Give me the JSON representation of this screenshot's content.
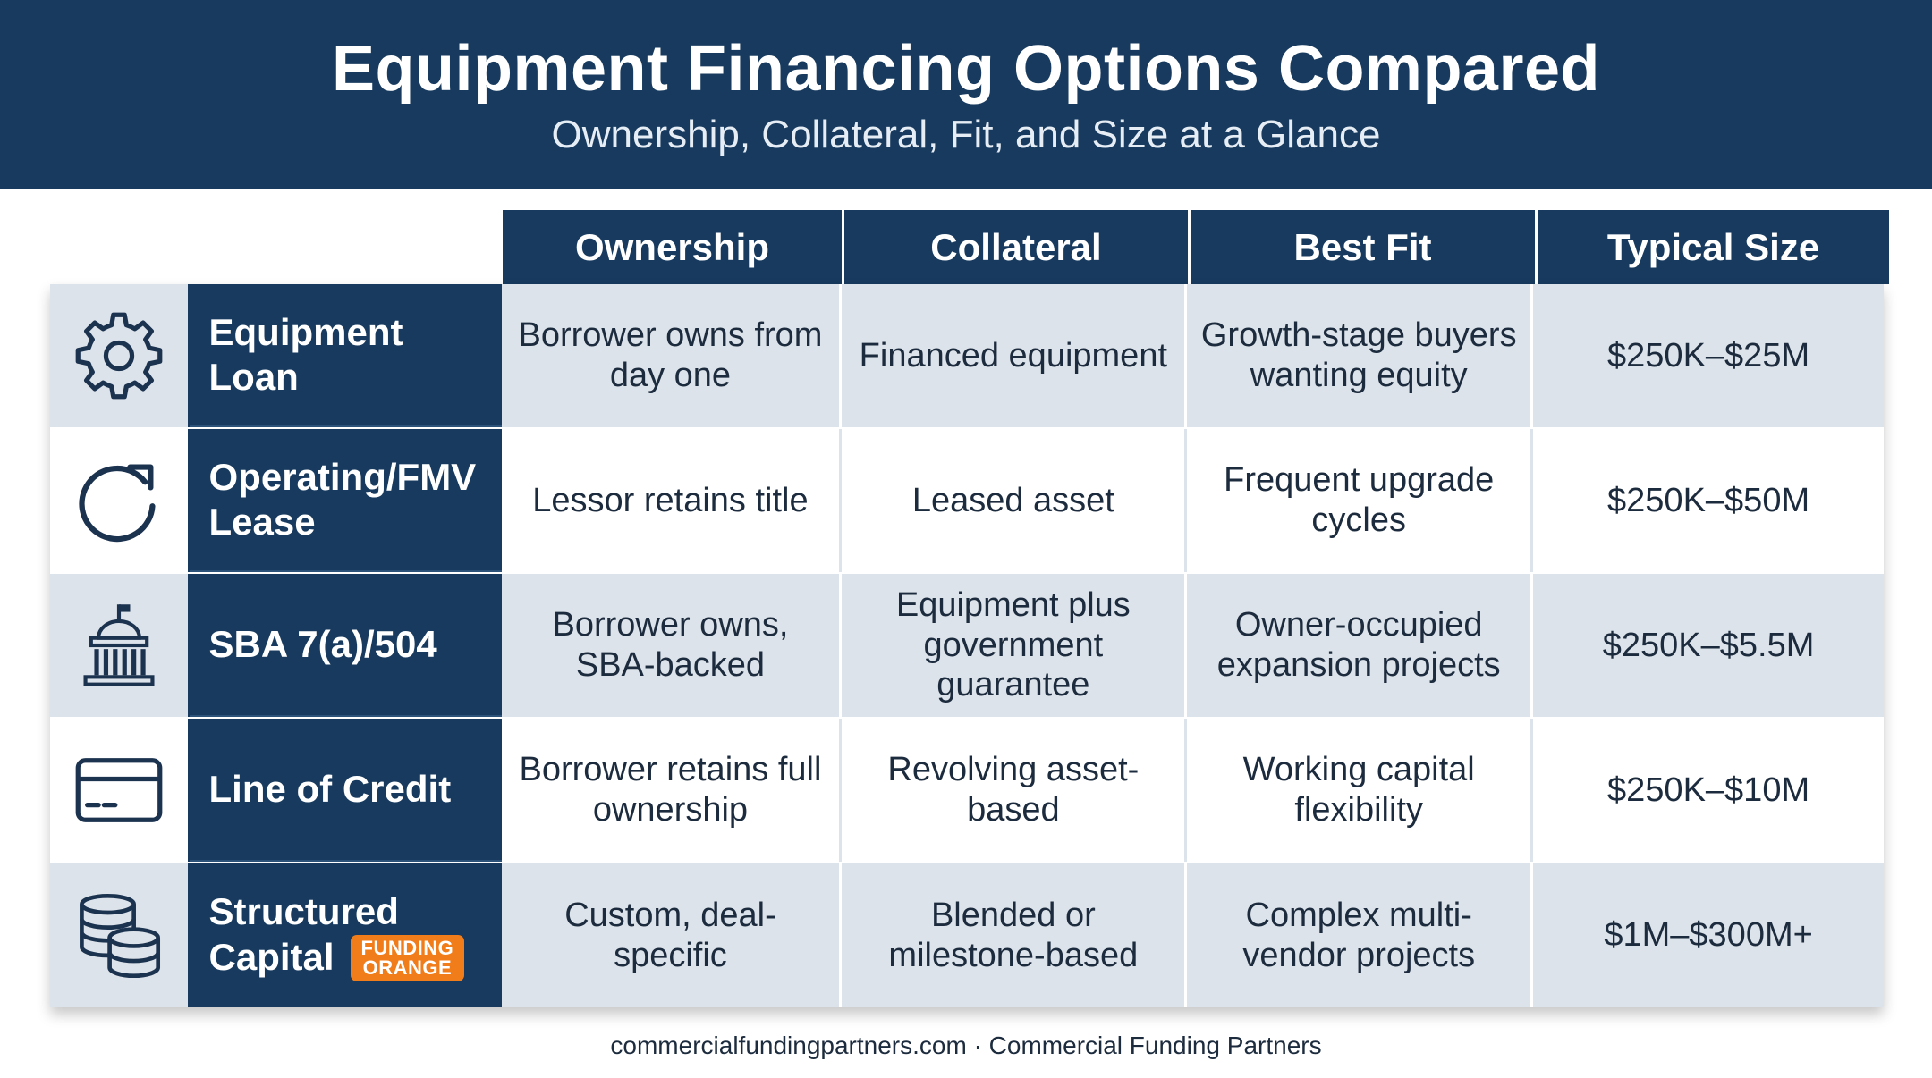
{
  "header": {
    "title": "Equipment Financing Options Compared",
    "subtitle": "Ownership, Collateral, Fit, and Size at a Glance"
  },
  "columns": [
    "Ownership",
    "Collateral",
    "Best Fit",
    "Typical Size"
  ],
  "rows": [
    {
      "icon": "gear-icon",
      "name_line1": "Equipment Loan",
      "name_line2": "",
      "badge": null,
      "ownership": "Borrower owns from day one",
      "collateral": "Financed equipment",
      "best_fit": "Growth-stage buyers wanting equity",
      "typical_size": "$250K–$25M"
    },
    {
      "icon": "refresh-icon",
      "name_line1": "Operating/FMV",
      "name_line2": "Lease",
      "badge": null,
      "ownership": "Lessor retains title",
      "collateral": "Leased asset",
      "best_fit": "Frequent upgrade cycles",
      "typical_size": "$250K–$50M"
    },
    {
      "icon": "government-building-icon",
      "name_line1": "SBA 7(a)/504",
      "name_line2": "",
      "badge": null,
      "ownership": "Borrower owns, SBA-backed",
      "collateral": "Equipment plus government guarantee",
      "best_fit": "Owner-occupied expansion projects",
      "typical_size": "$250K–$5.5M"
    },
    {
      "icon": "credit-card-icon",
      "name_line1": "Line of Credit",
      "name_line2": "",
      "badge": null,
      "ownership": "Borrower retains full ownership",
      "collateral": "Revolving asset-based",
      "best_fit": "Working capital flexibility",
      "typical_size": "$250K–$10M"
    },
    {
      "icon": "coin-stack-icon",
      "name_line1": "Structured",
      "name_line2": "Capital",
      "badge": {
        "line1": "FUNDING",
        "line2": "ORANGE"
      },
      "ownership": "Custom, deal-specific",
      "collateral": "Blended or milestone-based",
      "best_fit": "Complex multi-vendor projects",
      "typical_size": "$1M–$300M+"
    }
  ],
  "footer": "commercialfundingpartners.com · Commercial Funding Partners",
  "colors": {
    "navy": "#173a5e",
    "row_shade": "#dde3ea",
    "badge_orange": "#f07d1a"
  }
}
